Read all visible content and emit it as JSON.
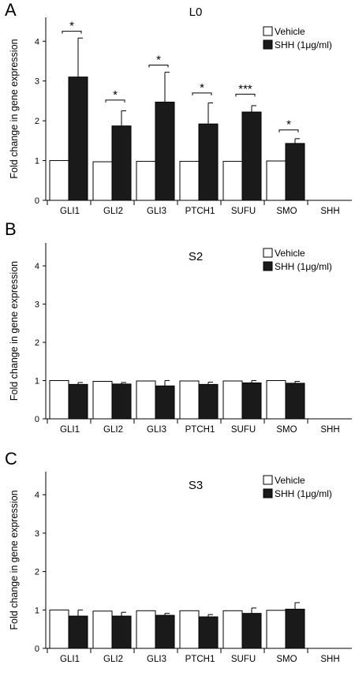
{
  "chart_data": [
    {
      "type": "bar",
      "panel_letter": "A",
      "title": "L0",
      "xlabel": "",
      "ylabel": "Fold change in gene expression",
      "ylim": [
        0,
        4.6
      ],
      "yticks": [
        0,
        1,
        2,
        3,
        4
      ],
      "categories": [
        "GLI1",
        "GLI2",
        "GLI3",
        "PTCH1",
        "SUFU",
        "SMO",
        "SHH"
      ],
      "legend_position": "top-right",
      "series": [
        {
          "name": "Vehicle",
          "color": "#ffffff",
          "values": [
            1.0,
            0.97,
            0.98,
            0.98,
            0.98,
            0.99,
            0.0
          ],
          "errors": [
            0,
            0,
            0,
            0,
            0,
            0,
            0
          ]
        },
        {
          "name": "SHH (1μg/ml)",
          "color": "#1a1a1a",
          "values": [
            3.1,
            1.87,
            2.47,
            1.92,
            2.22,
            1.43,
            0.0
          ],
          "errors": [
            0.98,
            0.38,
            0.75,
            0.53,
            0.16,
            0.12,
            0
          ]
        }
      ],
      "annotations": [
        {
          "category": "GLI1",
          "label": "*",
          "y": 4.25
        },
        {
          "category": "GLI2",
          "label": "*",
          "y": 2.52
        },
        {
          "category": "GLI3",
          "label": "*",
          "y": 3.4
        },
        {
          "category": "PTCH1",
          "label": "*",
          "y": 2.7
        },
        {
          "category": "SUFU",
          "label": "***",
          "y": 2.67
        },
        {
          "category": "SMO",
          "label": "*",
          "y": 1.77
        }
      ]
    },
    {
      "type": "bar",
      "panel_letter": "B",
      "title": "S2",
      "xlabel": "",
      "ylabel": "Fold change in gene expression",
      "ylim": [
        0,
        4.6
      ],
      "yticks": [
        0,
        1,
        2,
        3,
        4
      ],
      "categories": [
        "GLI1",
        "GLI2",
        "GLI3",
        "PTCH1",
        "SUFU",
        "SMO",
        "SHH"
      ],
      "legend_position": "top-right",
      "series": [
        {
          "name": "Vehicle",
          "color": "#ffffff",
          "values": [
            1.0,
            0.98,
            0.99,
            0.99,
            0.99,
            1.0,
            0.0
          ],
          "errors": [
            0,
            0,
            0,
            0,
            0,
            0,
            0
          ]
        },
        {
          "name": "SHH (1μg/ml)",
          "color": "#1a1a1a",
          "values": [
            0.9,
            0.91,
            0.86,
            0.9,
            0.94,
            0.93,
            0.0
          ],
          "errors": [
            0.05,
            0.04,
            0.14,
            0.06,
            0.06,
            0.05,
            0
          ]
        }
      ],
      "annotations": []
    },
    {
      "type": "bar",
      "panel_letter": "C",
      "title": "S3",
      "xlabel": "",
      "ylabel": "Fold change in gene expression",
      "ylim": [
        0,
        4.6
      ],
      "yticks": [
        0,
        1,
        2,
        3,
        4
      ],
      "categories": [
        "GLI1",
        "GLI2",
        "GLI3",
        "PTCH1",
        "SUFU",
        "SMO",
        "SHH"
      ],
      "legend_position": "top-right",
      "series": [
        {
          "name": "Vehicle",
          "color": "#ffffff",
          "values": [
            1.0,
            0.97,
            0.98,
            0.98,
            0.98,
            0.99,
            0.0
          ],
          "errors": [
            0,
            0,
            0,
            0,
            0,
            0,
            0
          ]
        },
        {
          "name": "SHH (1μg/ml)",
          "color": "#1a1a1a",
          "values": [
            0.84,
            0.84,
            0.86,
            0.82,
            0.91,
            1.02,
            0.0
          ],
          "errors": [
            0.16,
            0.1,
            0.05,
            0.06,
            0.14,
            0.17,
            0
          ]
        }
      ],
      "annotations": []
    }
  ]
}
